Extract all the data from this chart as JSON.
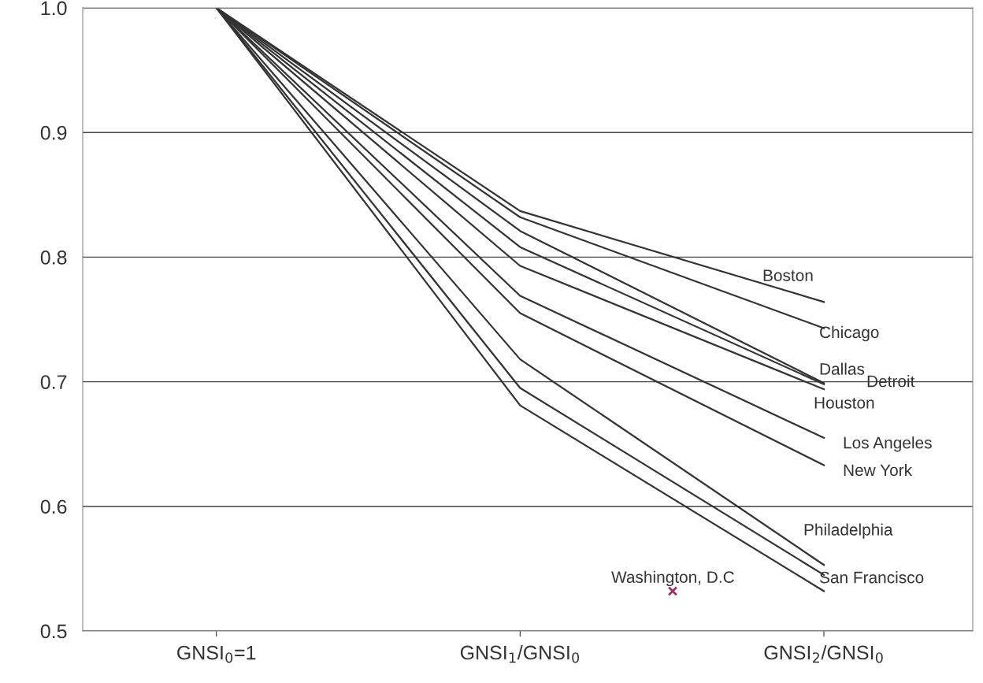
{
  "chart_data": {
    "type": "line",
    "categories": [
      "GNSI$_{0}$=1",
      "GNSI$_{1}$/GNSI$_{0}$",
      "GNSI$_{2}$/GNSI$_{0}$"
    ],
    "ylim": [
      0.5,
      1.0
    ],
    "yticks": [
      0.5,
      0.6,
      0.7,
      0.8,
      0.9,
      {
        "value": 1.0,
        "label": "1.0"
      }
    ],
    "grid": "y",
    "legend": false,
    "marker": "none",
    "line_style": "solid",
    "series": [
      {
        "name": "Boston",
        "color": "#333333",
        "values": [
          1.0,
          0.837,
          0.764
        ]
      },
      {
        "name": "Chicago",
        "color": "#333333",
        "values": [
          1.0,
          0.832,
          0.743
        ]
      },
      {
        "name": "Dallas",
        "color": "#333333",
        "values": [
          1.0,
          0.821,
          0.699
        ]
      },
      {
        "name": "Detroit",
        "color": "#333333",
        "values": [
          1.0,
          0.808,
          0.698
        ]
      },
      {
        "name": "Houston",
        "color": "#333333",
        "values": [
          1.0,
          0.793,
          0.694
        ]
      },
      {
        "name": "Los Angeles",
        "color": "#333333",
        "values": [
          1.0,
          0.769,
          0.655
        ]
      },
      {
        "name": "New York",
        "color": "#333333",
        "values": [
          1.0,
          0.755,
          0.633
        ]
      },
      {
        "name": "Philadelphia",
        "color": "#333333",
        "values": [
          1.0,
          0.718,
          0.553
        ]
      },
      {
        "name": "San Francisco",
        "color": "#333333",
        "values": [
          1.0,
          0.695,
          0.545
        ]
      },
      {
        "name": "Washington, D.C",
        "color": "#333333",
        "values": [
          1.0,
          0.681,
          0.532
        ]
      }
    ]
  }
}
